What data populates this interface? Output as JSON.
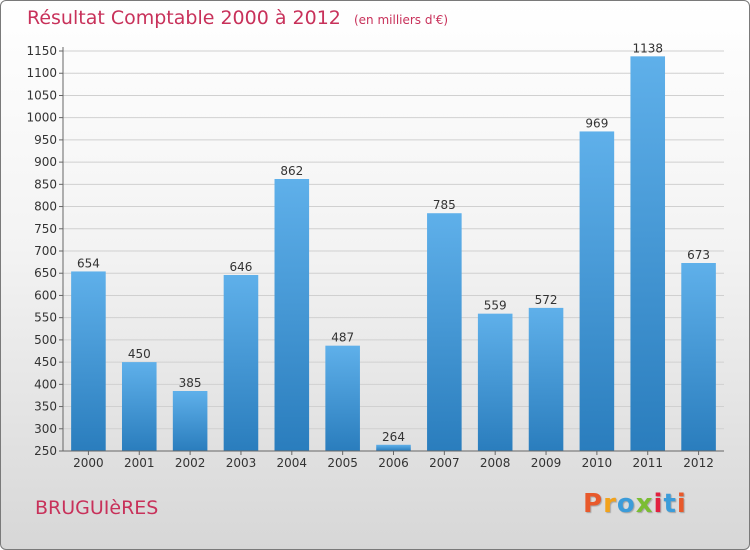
{
  "header": {
    "title": "Résultat Comptable 2000 à 2012",
    "subtitle": "(en milliers d'€)"
  },
  "footer": {
    "commune": "BRUGUIèRES",
    "brand": "Proxiti",
    "brand_colors": [
      "#e8592b",
      "#f2a21b",
      "#3c9cd9",
      "#7bbd33",
      "#e2203f",
      "#3c9cd9",
      "#e8592b"
    ]
  },
  "colors": {
    "bar_top": "#5fb0ea",
    "bar_bottom": "#2a7dbd",
    "grid": "#d0d0d0",
    "axis": "#666666",
    "text": "#333333"
  },
  "chart_data": {
    "type": "bar",
    "title": "Résultat Comptable 2000 à 2012",
    "subtitle": "(en milliers d'€)",
    "xlabel": "",
    "ylabel": "",
    "categories": [
      "2000",
      "2001",
      "2002",
      "2003",
      "2004",
      "2005",
      "2006",
      "2007",
      "2008",
      "2009",
      "2010",
      "2011",
      "2012"
    ],
    "values": [
      654,
      450,
      385,
      646,
      862,
      487,
      264,
      785,
      559,
      572,
      969,
      1138,
      673
    ],
    "ylim": [
      250,
      1150
    ],
    "yticks": [
      250,
      300,
      350,
      400,
      450,
      500,
      550,
      600,
      650,
      700,
      750,
      800,
      850,
      900,
      950,
      1000,
      1050,
      1100,
      1150
    ],
    "grid": true,
    "data_labels": true
  }
}
